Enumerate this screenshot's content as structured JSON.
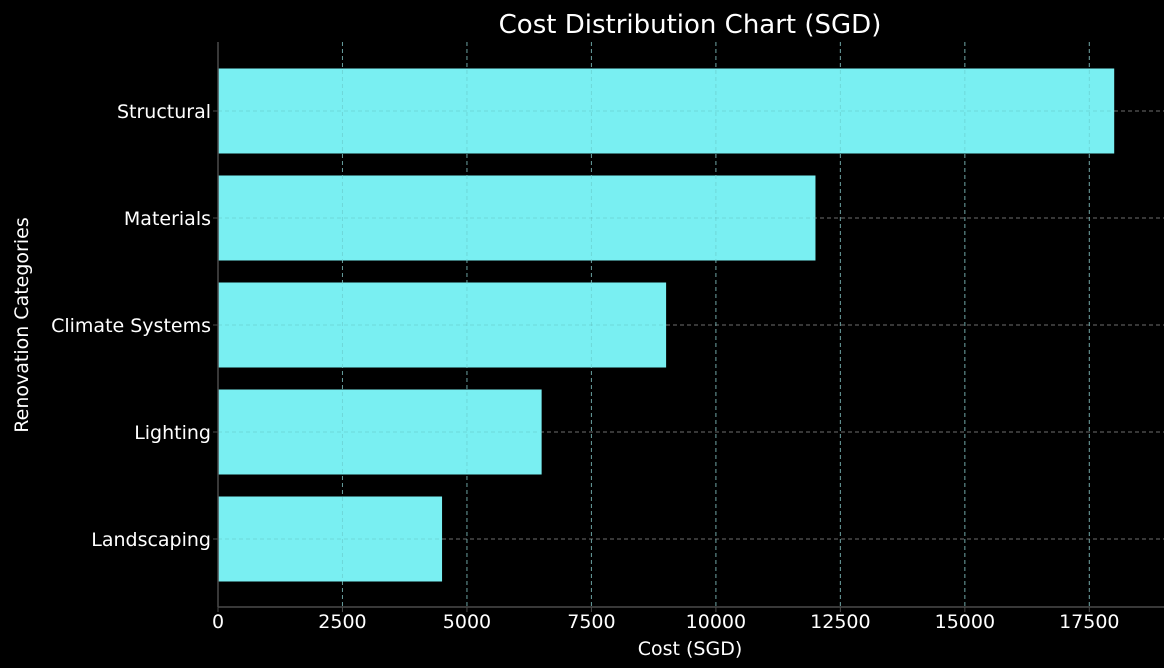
{
  "chart_data": {
    "type": "bar",
    "orientation": "horizontal",
    "title": "Cost Distribution Chart (SGD)",
    "xlabel": "Cost (SGD)",
    "ylabel": "Renovation Categories",
    "categories": [
      "Structural",
      "Materials",
      "Climate Systems",
      "Lighting",
      "Landscaping"
    ],
    "values": [
      18000,
      12000,
      9000,
      6500,
      4500
    ],
    "xlim": [
      0,
      19000
    ],
    "xticks": [
      0,
      2500,
      5000,
      7500,
      10000,
      12500,
      15000,
      17500
    ],
    "grid": true,
    "legend": "none"
  },
  "colors": {
    "background": "#000000",
    "bar": "#7ffcff",
    "text": "#ffffff",
    "grid": "#6e6e6e",
    "axis": "#4a4a4a"
  }
}
